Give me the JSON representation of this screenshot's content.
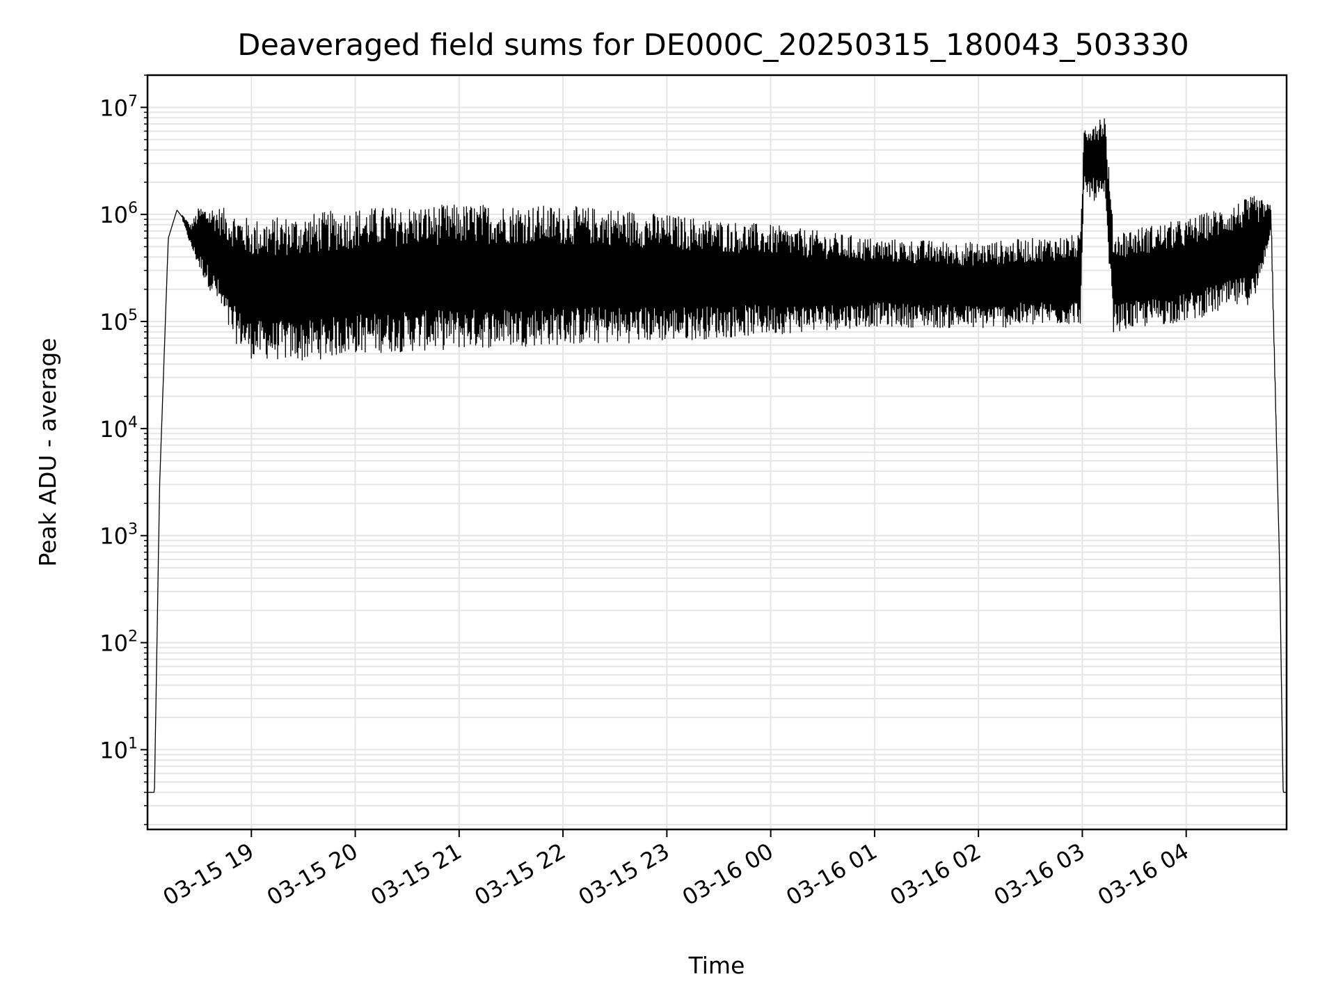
{
  "chart_data": {
    "type": "line",
    "title": "Deaveraged field sums for DE000C_20250315_180043_503330",
    "xlabel": "Time",
    "ylabel": "Peak ADU - average",
    "yscale": "log",
    "ylim": [
      1.8,
      20000000
    ],
    "xlim": [
      "2025-03-15 18:00",
      "2025-03-16 04:58"
    ],
    "grid": true,
    "line_color": "#000000",
    "grid_color": "#e5e5e5",
    "x_ticks": [
      "03-15 19",
      "03-15 20",
      "03-15 21",
      "03-15 22",
      "03-15 23",
      "03-16 00",
      "03-16 01",
      "03-16 02",
      "03-16 03",
      "03-16 04"
    ],
    "y_ticks": [
      {
        "base": "10",
        "exp": "1",
        "value": 10
      },
      {
        "base": "10",
        "exp": "2",
        "value": 100
      },
      {
        "base": "10",
        "exp": "3",
        "value": 1000
      },
      {
        "base": "10",
        "exp": "4",
        "value": 10000
      },
      {
        "base": "10",
        "exp": "5",
        "value": 100000
      },
      {
        "base": "10",
        "exp": "6",
        "value": 1000000
      },
      {
        "base": "10",
        "exp": "7",
        "value": 10000000
      }
    ],
    "series": [
      {
        "x": [
          "2025-03-15 18:00",
          "2025-03-15 18:04",
          "2025-03-15 18:07",
          "2025-03-15 18:12",
          "2025-03-15 18:17",
          "2025-03-15 18:20",
          "2025-03-15 18:25",
          "2025-03-15 18:30",
          "2025-03-15 18:40",
          "2025-03-15 18:48",
          "2025-03-15 19:00",
          "2025-03-15 19:30",
          "2025-03-15 20:00",
          "2025-03-15 20:30",
          "2025-03-15 21:00",
          "2025-03-15 21:30",
          "2025-03-15 22:00",
          "2025-03-15 22:30",
          "2025-03-15 23:00",
          "2025-03-16 00:00",
          "2025-03-16 01:00",
          "2025-03-16 02:00",
          "2025-03-16 02:59",
          "2025-03-16 03:01",
          "2025-03-16 03:13",
          "2025-03-16 03:18",
          "2025-03-16 04:00",
          "2025-03-16 04:40",
          "2025-03-16 04:49",
          "2025-03-16 04:54",
          "2025-03-16 04:56",
          "2025-03-16 04:58"
        ],
        "high": [
          4,
          4,
          3000,
          600000,
          1100000,
          1000000,
          800000,
          1200000,
          1200000,
          1100000,
          900000,
          1000000,
          1150000,
          1200000,
          1250000,
          1250000,
          1200000,
          1150000,
          1000000,
          800000,
          600000,
          550000,
          650000,
          7000000,
          9000000,
          700000,
          900000,
          1500000,
          1200000,
          500,
          4,
          4
        ],
        "low": [
          4,
          4,
          3000,
          600000,
          1100000,
          900000,
          500000,
          300000,
          150000,
          70000,
          45000,
          42000,
          50000,
          52000,
          55000,
          58000,
          60000,
          62000,
          65000,
          75000,
          90000,
          85000,
          95000,
          1500000,
          1200000,
          80000,
          100000,
          150000,
          700000,
          500,
          4,
          4
        ]
      }
    ]
  }
}
